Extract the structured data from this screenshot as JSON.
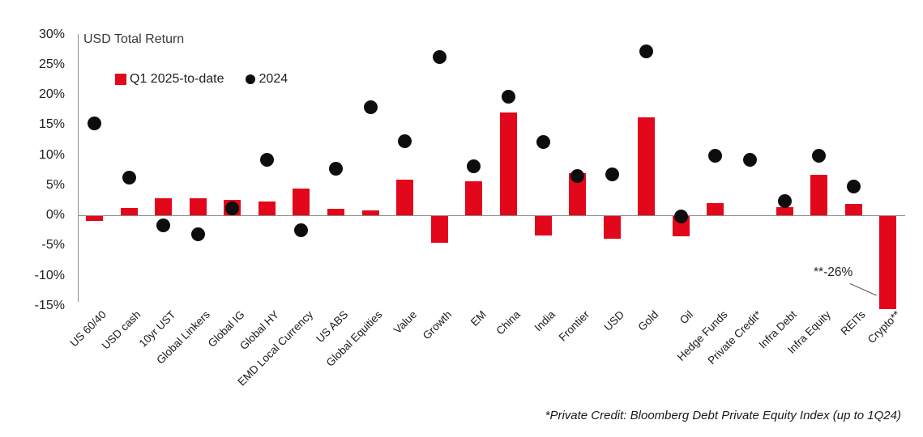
{
  "title": "USD Total Return",
  "footnote": "*Private Credit: Bloomberg Debt Private Equity Index (up to 1Q24)",
  "annotation": {
    "text": "**-26%"
  },
  "colors": {
    "bar_red": "#e2071a",
    "dot_black": "#0d0d0d",
    "axis_gray": "#8c8c8c"
  },
  "legend": [
    {
      "label": "Q1 2025-to-date",
      "swatch": "square",
      "color": "#e2071a"
    },
    {
      "label": "2024",
      "swatch": "circle",
      "color": "#0d0d0d"
    }
  ],
  "chart_data": {
    "type": "bar",
    "subtype": "bar+scatter",
    "title": "USD Total Return",
    "xlabel": "",
    "ylabel": "USD Total Return",
    "ylim": [
      -15,
      30
    ],
    "ytick_step": 5,
    "ytick_labels": [
      "30%",
      "25%",
      "20%",
      "15%",
      "10%",
      "5%",
      "0%",
      "-5%",
      "-10%",
      "-15%"
    ],
    "grid": false,
    "legend_position": "top-left-inside",
    "categories": [
      "US 60/40",
      "USD cash",
      "10yr UST",
      "Global Linkers",
      "Global IG",
      "Global HY",
      "EMD Local Currency",
      "US ABS",
      "Global Equities",
      "Value",
      "Growth",
      "EM",
      "China",
      "India",
      "Frontier",
      "USD",
      "Gold",
      "Oil",
      "Hedge Funds",
      "Private Credit*",
      "Infra Debt",
      "Infra Equity",
      "REITs",
      "Crypto**"
    ],
    "series": [
      {
        "name": "Q1 2025-to-date",
        "type": "bar",
        "color": "#e2071a",
        "values": [
          -0.8,
          1.2,
          2.8,
          2.8,
          2.5,
          2.3,
          4.4,
          1.1,
          0.8,
          5.9,
          -4.4,
          5.6,
          17.0,
          -3.2,
          7.0,
          -3.7,
          16.2,
          -3.3,
          2.0,
          null,
          1.3,
          6.7,
          1.9,
          -26
        ]
      },
      {
        "name": "2024",
        "type": "scatter",
        "color": "#0d0d0d",
        "values": [
          15.2,
          6.3,
          -1.7,
          -3.2,
          1.2,
          9.2,
          -2.5,
          7.7,
          17.9,
          12.3,
          26.2,
          8.1,
          19.6,
          12.2,
          6.5,
          6.8,
          27.2,
          -0.2,
          9.8,
          9.2,
          2.3,
          9.8,
          4.7,
          null
        ]
      }
    ],
    "clipped_bars": [
      {
        "category": "Crypto**",
        "actual_value": -26,
        "displayed_to": -15.4,
        "callout": "**-26%"
      }
    ]
  }
}
